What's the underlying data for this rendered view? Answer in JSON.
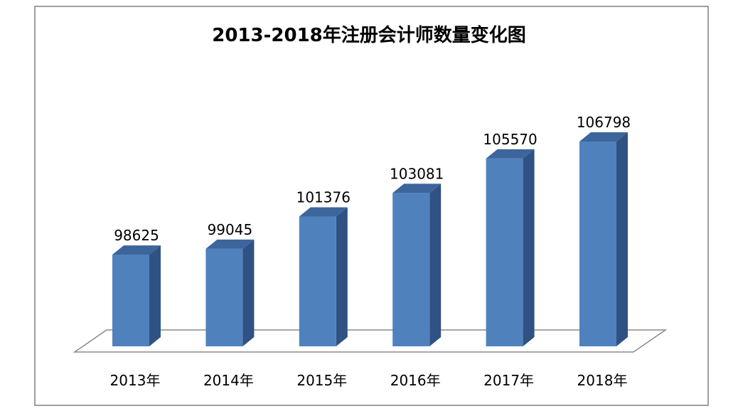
{
  "chart_data": {
    "type": "bar",
    "title": "2013-2018年注册会计师数量变化图",
    "categories": [
      "2013年",
      "2014年",
      "2015年",
      "2016年",
      "2017年",
      "2018年"
    ],
    "values": [
      98625,
      99045,
      101376,
      103081,
      105570,
      106798
    ],
    "data_labels": [
      "98625",
      "99045",
      "101376",
      "103081",
      "105570",
      "106798"
    ],
    "ylim": [
      92000,
      108000
    ],
    "grid": false,
    "legend": "none",
    "style": "3d-column"
  },
  "colors": {
    "bar_front": "#4f81bd",
    "bar_side": "#2f5282",
    "bar_top": "#3c659c",
    "floor_stroke": "#8a8a8a",
    "frame_stroke": "#7f7f7f"
  }
}
